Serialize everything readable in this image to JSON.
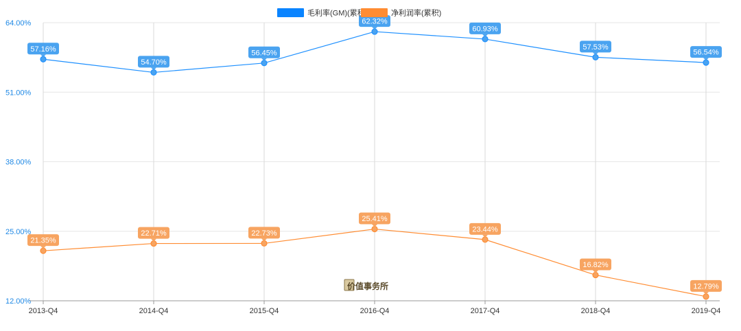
{
  "chart_data": {
    "type": "line",
    "categories": [
      "2013-Q4",
      "2014-Q4",
      "2015-Q4",
      "2016-Q4",
      "2017-Q4",
      "2018-Q4",
      "2019-Q4"
    ],
    "series": [
      {
        "name": "毛利率(GM)(累积)",
        "color": "#1e90ff",
        "legend_color": "#0a84ff",
        "label_color": "#4aa3f0",
        "values": [
          57.16,
          54.7,
          56.45,
          62.32,
          60.93,
          57.53,
          56.54
        ],
        "labels": [
          "57.16%",
          "54.70%",
          "56.45%",
          "62.32%",
          "60.93%",
          "57.53%",
          "56.54%"
        ]
      },
      {
        "name": "净利润率(累积)",
        "color": "#ff8c32",
        "legend_color": "#ff8c32",
        "label_color": "#f7a461",
        "values": [
          21.35,
          22.71,
          22.73,
          25.41,
          23.44,
          16.82,
          12.79
        ],
        "labels": [
          "21.35%",
          "22.71%",
          "22.73%",
          "25.41%",
          "23.44%",
          "16.82%",
          "12.79%"
        ]
      }
    ],
    "yticks": [
      12,
      25,
      38,
      51,
      64
    ],
    "ytick_labels": [
      "12.00%",
      "25.00%",
      "38.00%",
      "51.00%",
      "64.00%"
    ],
    "ytick_color": "#1e88e5",
    "ylim": [
      12,
      64
    ],
    "grid": true,
    "legend_position": "top-center",
    "watermark": "价值事务所"
  }
}
